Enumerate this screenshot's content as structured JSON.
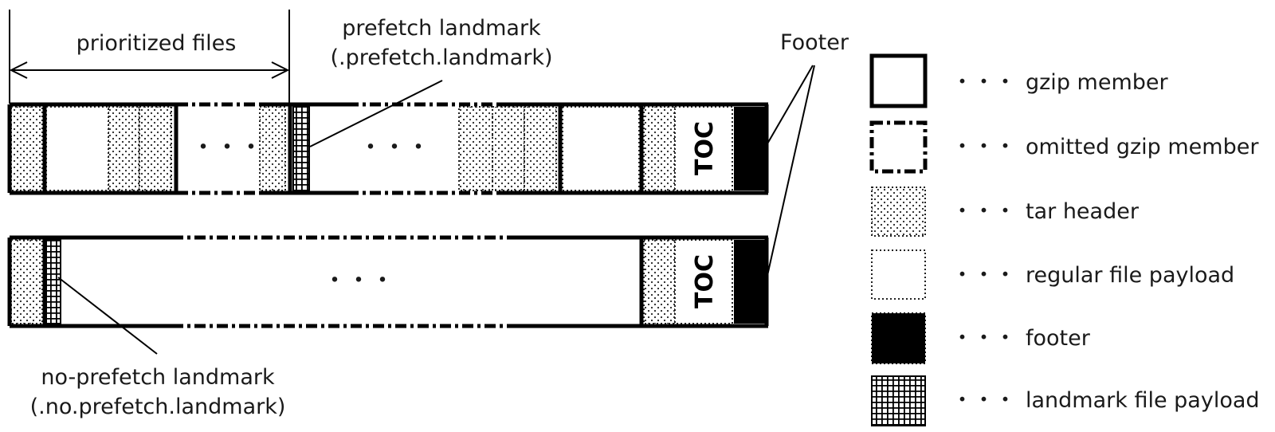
{
  "labels": {
    "prioritized_files": "prioritized files",
    "prefetch_landmark_line1": "prefetch landmark",
    "prefetch_landmark_line2": "(.prefetch.landmark)",
    "footer": "Footer",
    "no_prefetch_landmark_line1": "no-prefetch landmark",
    "no_prefetch_landmark_line2": "(.no.prefetch.landmark)",
    "toc": "TOC",
    "ellipsis": "・・・"
  },
  "legend": {
    "leader": "・・・",
    "items": [
      {
        "kind": "gzip-member",
        "label": "gzip member"
      },
      {
        "kind": "omitted-gzip-member",
        "label": "omitted gzip member"
      },
      {
        "kind": "tar-header",
        "label": "tar header"
      },
      {
        "kind": "regular-file-payload",
        "label": "regular file payload"
      },
      {
        "kind": "footer",
        "label": "footer"
      },
      {
        "kind": "landmark-file-payload",
        "label": "landmark file payload"
      }
    ]
  }
}
